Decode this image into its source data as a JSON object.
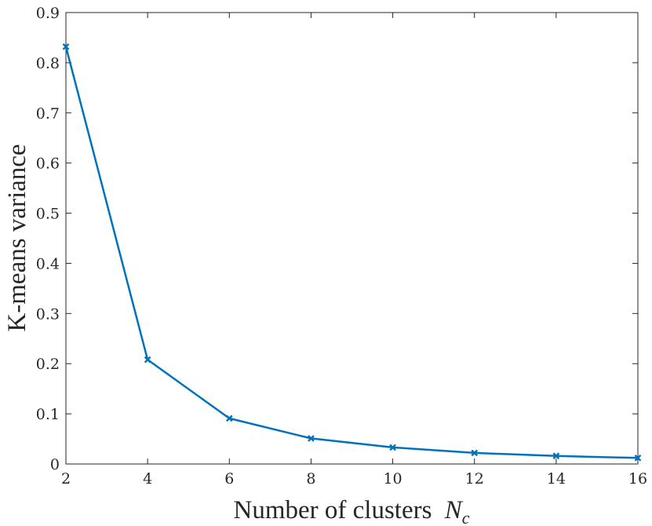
{
  "chart_data": {
    "type": "line",
    "xlabel": "Number of clusters",
    "xlabel_symbol": "N",
    "xlabel_subscript": "c",
    "ylabel": "K-means variance",
    "xlim": [
      2,
      16
    ],
    "ylim": [
      0,
      0.9
    ],
    "xticks": [
      2,
      4,
      6,
      8,
      10,
      12,
      14,
      16
    ],
    "yticks": [
      0,
      0.1,
      0.2,
      0.3,
      0.4,
      0.5,
      0.6,
      0.7,
      0.8,
      0.9
    ],
    "ytick_labels": [
      "0",
      "0.1",
      "0.2",
      "0.3",
      "0.4",
      "0.5",
      "0.6",
      "0.7",
      "0.8",
      "0.9"
    ],
    "grid": false,
    "box": true,
    "series": [
      {
        "color": "#0072BD",
        "marker": "x",
        "x": [
          2,
          4,
          6,
          8,
          10,
          12,
          14,
          16
        ],
        "y": [
          0.832,
          0.208,
          0.091,
          0.051,
          0.033,
          0.022,
          0.016,
          0.012
        ]
      }
    ]
  }
}
